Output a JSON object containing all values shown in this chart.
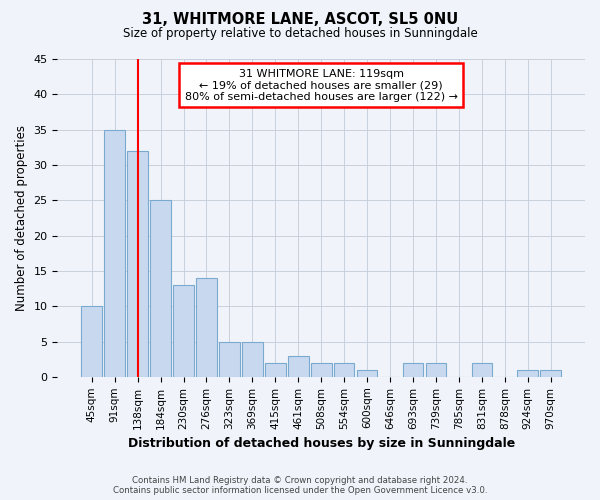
{
  "title1": "31, WHITMORE LANE, ASCOT, SL5 0NU",
  "title2": "Size of property relative to detached houses in Sunningdale",
  "xlabel": "Distribution of detached houses by size in Sunningdale",
  "ylabel": "Number of detached properties",
  "categories": [
    "45sqm",
    "91sqm",
    "138sqm",
    "184sqm",
    "230sqm",
    "276sqm",
    "323sqm",
    "369sqm",
    "415sqm",
    "461sqm",
    "508sqm",
    "554sqm",
    "600sqm",
    "646sqm",
    "693sqm",
    "739sqm",
    "785sqm",
    "831sqm",
    "878sqm",
    "924sqm",
    "970sqm"
  ],
  "values": [
    10,
    35,
    32,
    25,
    13,
    14,
    5,
    5,
    2,
    3,
    2,
    2,
    1,
    0,
    2,
    2,
    0,
    2,
    0,
    1,
    1
  ],
  "bar_color": "#c8d9ef",
  "bar_edge_color": "#7aaad0",
  "property_line_x": 2.0,
  "annotation_text": "31 WHITMORE LANE: 119sqm\n← 19% of detached houses are smaller (29)\n80% of semi-detached houses are larger (122) →",
  "annotation_box_color": "white",
  "annotation_box_edge": "red",
  "vline_color": "red",
  "ylim": [
    0,
    45
  ],
  "yticks": [
    0,
    5,
    10,
    15,
    20,
    25,
    30,
    35,
    40,
    45
  ],
  "footer1": "Contains HM Land Registry data © Crown copyright and database right 2024.",
  "footer2": "Contains public sector information licensed under the Open Government Licence v3.0.",
  "bg_color": "#f0f4fa",
  "grid_color": "#c8d0dc"
}
